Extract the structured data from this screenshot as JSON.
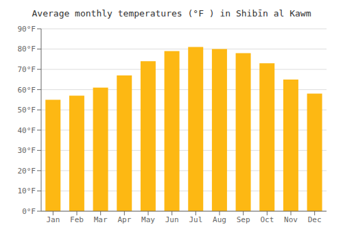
{
  "chart_data": {
    "type": "bar",
    "title": "Average monthly temperatures (°F ) in Shibīn al Kawm",
    "categories": [
      "Jan",
      "Feb",
      "Mar",
      "Apr",
      "May",
      "Jun",
      "Jul",
      "Aug",
      "Sep",
      "Oct",
      "Nov",
      "Dec"
    ],
    "values": [
      55,
      57,
      61,
      67,
      74,
      79,
      81,
      80,
      78,
      73,
      65,
      58
    ],
    "color": "#FDB813",
    "ylim": [
      0,
      90
    ],
    "yticks": [
      {
        "value": 0,
        "label": "0°F"
      },
      {
        "value": 10,
        "label": "10°F"
      },
      {
        "value": 20,
        "label": "20°F"
      },
      {
        "value": 30,
        "label": "30°F"
      },
      {
        "value": 40,
        "label": "40°F"
      },
      {
        "value": 50,
        "label": "50°F"
      },
      {
        "value": 60,
        "label": "60°F"
      },
      {
        "value": 70,
        "label": "70°F"
      },
      {
        "value": 80,
        "label": "80°F"
      },
      {
        "value": 90,
        "label": "90°F"
      }
    ],
    "grid": true
  }
}
